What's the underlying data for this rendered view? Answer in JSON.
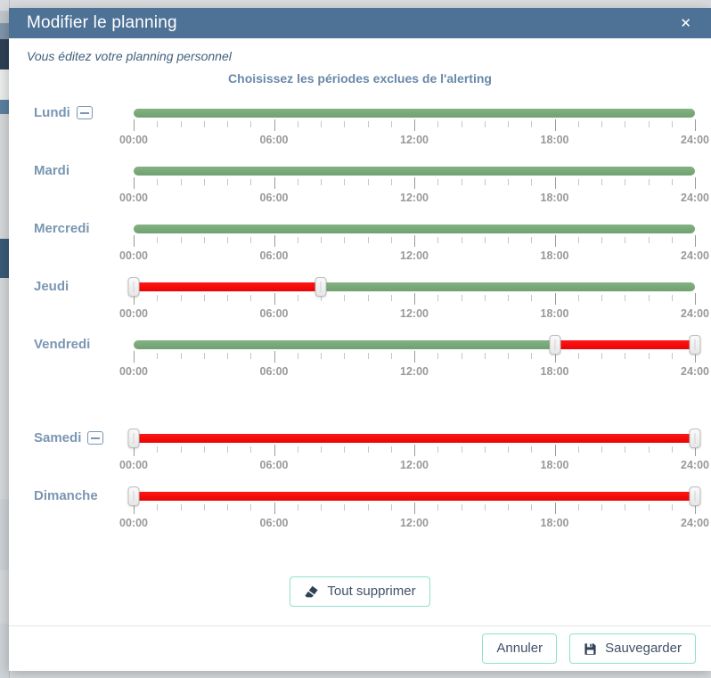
{
  "modal": {
    "title": "Modifier le planning",
    "close_glyph": "✕",
    "subtitle": "Vous éditez votre planning personnel",
    "heading": "Choisissez les périodes exclues de l'alerting"
  },
  "schedule": {
    "axis": {
      "min": 0,
      "max": 24,
      "minor_step": 1,
      "major_step": 6,
      "major_labels": [
        "00:00",
        "06:00",
        "12:00",
        "18:00",
        "24:00"
      ]
    },
    "days": [
      {
        "label": "Lundi",
        "removable": true,
        "segments": [
          {
            "from": 0,
            "to": 24,
            "state": "included"
          }
        ],
        "handles": []
      },
      {
        "label": "Mardi",
        "removable": false,
        "segments": [
          {
            "from": 0,
            "to": 24,
            "state": "included"
          }
        ],
        "handles": []
      },
      {
        "label": "Mercredi",
        "removable": false,
        "segments": [
          {
            "from": 0,
            "to": 24,
            "state": "included"
          }
        ],
        "handles": []
      },
      {
        "label": "Jeudi",
        "removable": false,
        "segments": [
          {
            "from": 0,
            "to": 8,
            "state": "excluded"
          },
          {
            "from": 8,
            "to": 24,
            "state": "included"
          }
        ],
        "handles": [
          0,
          8
        ]
      },
      {
        "label": "Vendredi",
        "removable": false,
        "segments": [
          {
            "from": 0,
            "to": 18,
            "state": "included"
          },
          {
            "from": 18,
            "to": 24,
            "state": "excluded"
          }
        ],
        "handles": [
          18,
          24
        ]
      },
      {
        "label": "Samedi",
        "removable": true,
        "segments": [
          {
            "from": 0,
            "to": 24,
            "state": "excluded"
          }
        ],
        "handles": [
          0,
          24
        ]
      },
      {
        "label": "Dimanche",
        "removable": false,
        "segments": [
          {
            "from": 0,
            "to": 24,
            "state": "excluded"
          }
        ],
        "handles": [
          0,
          24
        ]
      }
    ]
  },
  "actions": {
    "clear_all": "Tout supprimer",
    "cancel": "Annuler",
    "save": "Sauvegarder"
  },
  "colors": {
    "header_bg": "#4e7296",
    "included_green": "#7aaa7a",
    "excluded_red": "#f21111",
    "day_label_blue": "#7a96b2",
    "heading_blue": "#6889a9",
    "subtitle_blue": "#41607c",
    "button_border_teal": "#8be2cc",
    "button_text": "#3f5266",
    "tick_gray": "#9a9a9a"
  }
}
